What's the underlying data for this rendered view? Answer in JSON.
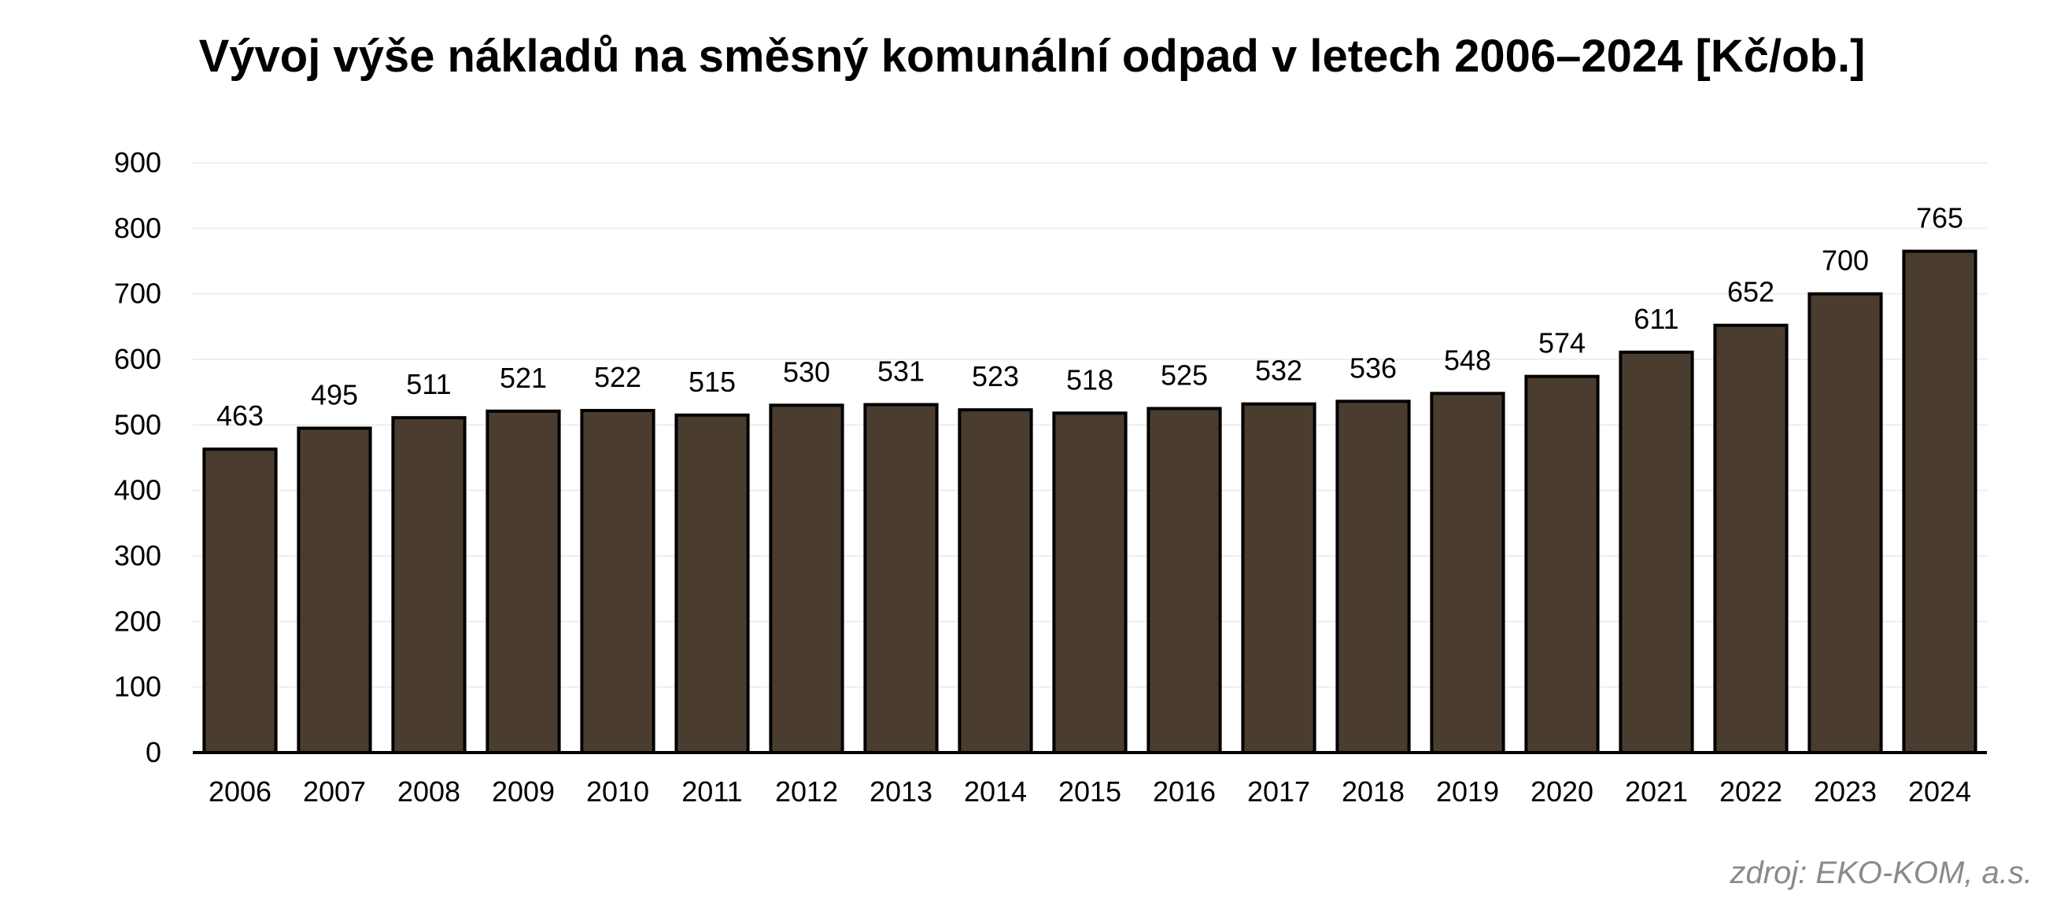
{
  "chart_data": {
    "type": "bar",
    "title": "Vývoj výše nákladů na směsný komunální odpad v letech 2006–2024 [Kč/ob.]",
    "source": "zdroj: EKO-KOM, a.s.",
    "categories": [
      "2006",
      "2007",
      "2008",
      "2009",
      "2010",
      "2011",
      "2012",
      "2013",
      "2014",
      "2015",
      "2016",
      "2017",
      "2018",
      "2019",
      "2020",
      "2021",
      "2022",
      "2023",
      "2024"
    ],
    "values": [
      463,
      495,
      511,
      521,
      522,
      515,
      530,
      531,
      523,
      518,
      525,
      532,
      536,
      548,
      574,
      611,
      652,
      700,
      765
    ],
    "ylim": [
      0,
      900
    ],
    "yticks": [
      0,
      100,
      200,
      300,
      400,
      500,
      600,
      700,
      800,
      900
    ],
    "grid": true,
    "data_labels": true,
    "legend": "none",
    "bar_color": "#4a3d30",
    "bar_edge_color": "#000000",
    "grid_color": "#eeeeee"
  }
}
